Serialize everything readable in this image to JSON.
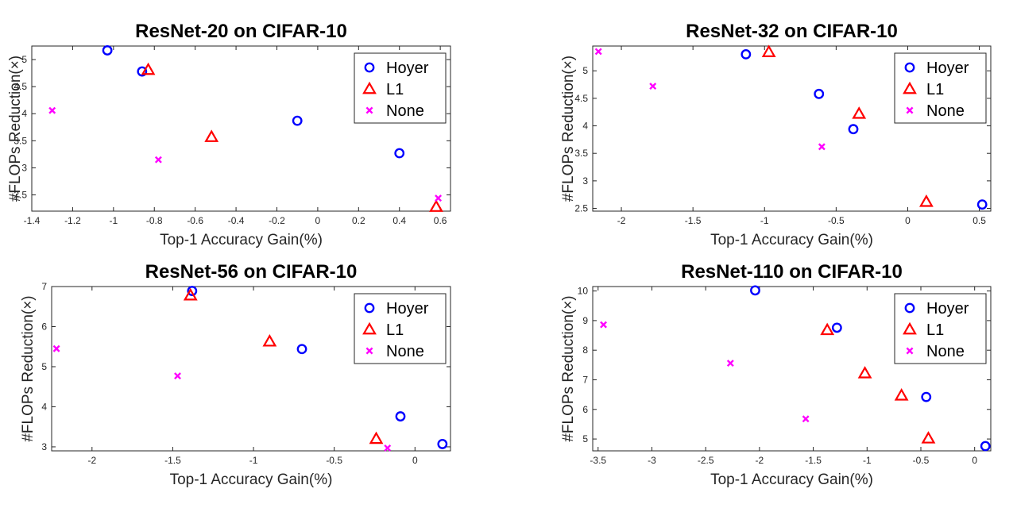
{
  "chart_data": [
    {
      "type": "scatter",
      "title": "ResNet-20 on CIFAR-10",
      "xlabel": "Top-1 Accuracy Gain(%)",
      "ylabel": "#FLOPs Reduction(×)",
      "xlim": [
        -1.4,
        0.65
      ],
      "ylim": [
        2.2,
        5.25
      ],
      "xticks": [
        -1.4,
        -1.2,
        -1,
        -0.8,
        -0.6,
        -0.4,
        -0.2,
        0,
        0.2,
        0.4,
        0.6
      ],
      "xtick_labels": [
        "-1.4",
        "-1.2",
        "-1",
        "-0.8",
        "-0.6",
        "-0.4",
        "-0.2",
        "0",
        "0.2",
        "0.4",
        "0.6"
      ],
      "yticks": [
        2.5,
        3,
        3.5,
        4,
        4.5,
        5
      ],
      "ytick_labels": [
        "2.5",
        "3",
        "3.5",
        "4",
        "4.5",
        "5"
      ],
      "legend_position": "top-right",
      "series": [
        {
          "name": "Hoyer",
          "marker": "circle",
          "color": "#0000ff",
          "points": [
            [
              -1.03,
              5.17
            ],
            [
              -0.86,
              4.78
            ],
            [
              -0.1,
              3.87
            ],
            [
              0.4,
              3.27
            ]
          ]
        },
        {
          "name": "L1",
          "marker": "triangle",
          "color": "#ff0000",
          "points": [
            [
              -0.83,
              4.81
            ],
            [
              -0.52,
              3.57
            ],
            [
              0.58,
              2.28
            ]
          ]
        },
        {
          "name": "None",
          "marker": "cross",
          "color": "#ff00ff",
          "points": [
            [
              -1.3,
              4.06
            ],
            [
              -0.78,
              3.15
            ],
            [
              0.59,
              2.44
            ]
          ]
        }
      ]
    },
    {
      "type": "scatter",
      "title": "ResNet-32 on CIFAR-10",
      "xlabel": "Top-1 Accuracy Gain(%)",
      "ylabel": "#FLOPs Reduction(×)",
      "xlim": [
        -2.2,
        0.58
      ],
      "ylim": [
        2.45,
        5.45
      ],
      "xticks": [
        -2,
        -1.5,
        -1,
        -0.5,
        0,
        0.5
      ],
      "xtick_labels": [
        "-2",
        "-1.5",
        "-1",
        "-0.5",
        "0",
        "0.5"
      ],
      "yticks": [
        2.5,
        3,
        3.5,
        4,
        4.5,
        5
      ],
      "ytick_labels": [
        "2.5",
        "3",
        "3.5",
        "4",
        "4.5",
        "5"
      ],
      "legend_position": "top-right",
      "series": [
        {
          "name": "Hoyer",
          "marker": "circle",
          "color": "#0000ff",
          "points": [
            [
              -1.13,
              5.3
            ],
            [
              -0.62,
              4.58
            ],
            [
              -0.38,
              3.94
            ],
            [
              0.52,
              2.57
            ]
          ]
        },
        {
          "name": "L1",
          "marker": "triangle",
          "color": "#ff0000",
          "points": [
            [
              -0.97,
              5.34
            ],
            [
              -0.34,
              4.22
            ],
            [
              0.13,
              2.62
            ]
          ]
        },
        {
          "name": "None",
          "marker": "cross",
          "color": "#ff00ff",
          "points": [
            [
              -2.16,
              5.35
            ],
            [
              -1.78,
              4.72
            ],
            [
              -0.6,
              3.62
            ]
          ]
        }
      ]
    },
    {
      "type": "scatter",
      "title": "ResNet-56 on CIFAR-10",
      "xlabel": "Top-1 Accuracy Gain(%)",
      "ylabel": "#FLOPs Reduction(×)",
      "xlim": [
        -2.25,
        0.22
      ],
      "ylim": [
        2.9,
        7.0
      ],
      "xticks": [
        -2,
        -1.5,
        -1,
        -0.5,
        0
      ],
      "xtick_labels": [
        "-2",
        "-1.5",
        "-1",
        "-0.5",
        "0"
      ],
      "yticks": [
        3,
        4,
        5,
        6,
        7
      ],
      "ytick_labels": [
        "3",
        "4",
        "5",
        "6",
        "7"
      ],
      "legend_position": "top-right",
      "series": [
        {
          "name": "Hoyer",
          "marker": "circle",
          "color": "#0000ff",
          "points": [
            [
              -1.38,
              6.89
            ],
            [
              -0.7,
              5.44
            ],
            [
              -0.09,
              3.76
            ],
            [
              0.17,
              3.07
            ]
          ]
        },
        {
          "name": "L1",
          "marker": "triangle",
          "color": "#ff0000",
          "points": [
            [
              -1.39,
              6.78
            ],
            [
              -0.9,
              5.63
            ],
            [
              -0.24,
              3.2
            ]
          ]
        },
        {
          "name": "None",
          "marker": "cross",
          "color": "#ff00ff",
          "points": [
            [
              -2.22,
              5.45
            ],
            [
              -1.47,
              4.77
            ],
            [
              -0.17,
              2.97
            ]
          ]
        }
      ]
    },
    {
      "type": "scatter",
      "title": "ResNet-110 on CIFAR-10",
      "xlabel": "Top-1 Accuracy Gain(%)",
      "ylabel": "#FLOPs Reduction(×)",
      "xlim": [
        -3.55,
        0.15
      ],
      "ylim": [
        4.6,
        10.15
      ],
      "xticks": [
        -3.5,
        -3,
        -2.5,
        -2,
        -1.5,
        -1,
        -0.5,
        0
      ],
      "xtick_labels": [
        "-3.5",
        "-3",
        "-2.5",
        "-2",
        "-1.5",
        "-1",
        "-0.5",
        "0"
      ],
      "yticks": [
        5,
        6,
        7,
        8,
        9,
        10
      ],
      "ytick_labels": [
        "5",
        "6",
        "7",
        "8",
        "9",
        "10"
      ],
      "legend_position": "top-right",
      "series": [
        {
          "name": "Hoyer",
          "marker": "circle",
          "color": "#0000ff",
          "points": [
            [
              -2.04,
              10.02
            ],
            [
              -1.28,
              8.76
            ],
            [
              -0.45,
              6.42
            ],
            [
              0.1,
              4.76
            ]
          ]
        },
        {
          "name": "L1",
          "marker": "triangle",
          "color": "#ff0000",
          "points": [
            [
              -1.37,
              8.68
            ],
            [
              -1.02,
              7.22
            ],
            [
              -0.68,
              6.47
            ],
            [
              -0.43,
              5.02
            ]
          ]
        },
        {
          "name": "None",
          "marker": "cross",
          "color": "#ff00ff",
          "points": [
            [
              -3.45,
              8.86
            ],
            [
              -2.27,
              7.56
            ],
            [
              -1.57,
              5.68
            ]
          ]
        }
      ]
    }
  ]
}
